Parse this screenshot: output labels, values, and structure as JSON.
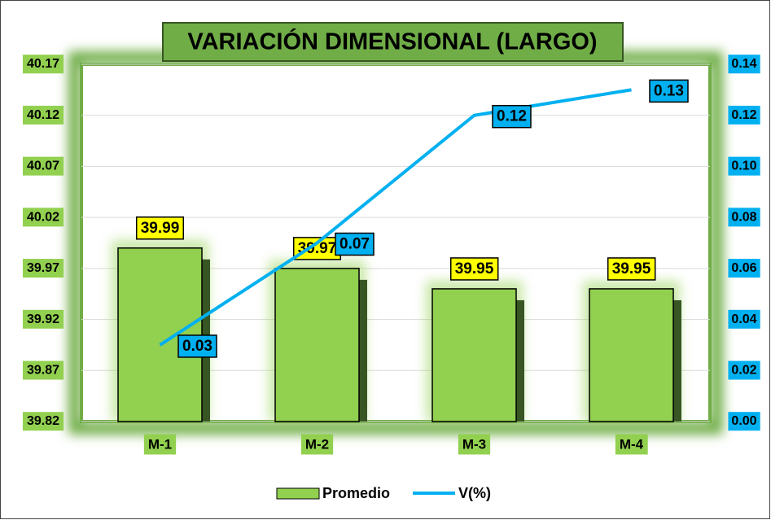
{
  "chart_data": {
    "type": "bar_line",
    "title": "VARIACIÓN DIMENSIONAL (LARGO)",
    "categories": [
      "M-1",
      "M-2",
      "M-3",
      "M-4"
    ],
    "series": [
      {
        "name": "Promedio",
        "type": "bar",
        "color": "#92d050",
        "values": [
          39.99,
          39.97,
          39.95,
          39.95
        ]
      },
      {
        "name": "V(%)",
        "type": "line",
        "axis": "y2",
        "color": "#00b0f0",
        "values": [
          0.03,
          0.07,
          0.12,
          0.13
        ]
      }
    ],
    "ylim": [
      39.82,
      40.17
    ],
    "yticks": [
      39.82,
      39.87,
      39.92,
      39.97,
      40.02,
      40.07,
      40.12,
      40.17
    ],
    "y2lim": [
      0,
      0.14
    ],
    "y2ticks": [
      {
        "value": 0,
        "label": "0.00"
      },
      0.02,
      0.04,
      0.06,
      0.08,
      {
        "value": 0.1,
        "label": "0.10"
      },
      0.12,
      0.14
    ],
    "grid": true,
    "legend": "bottom"
  }
}
